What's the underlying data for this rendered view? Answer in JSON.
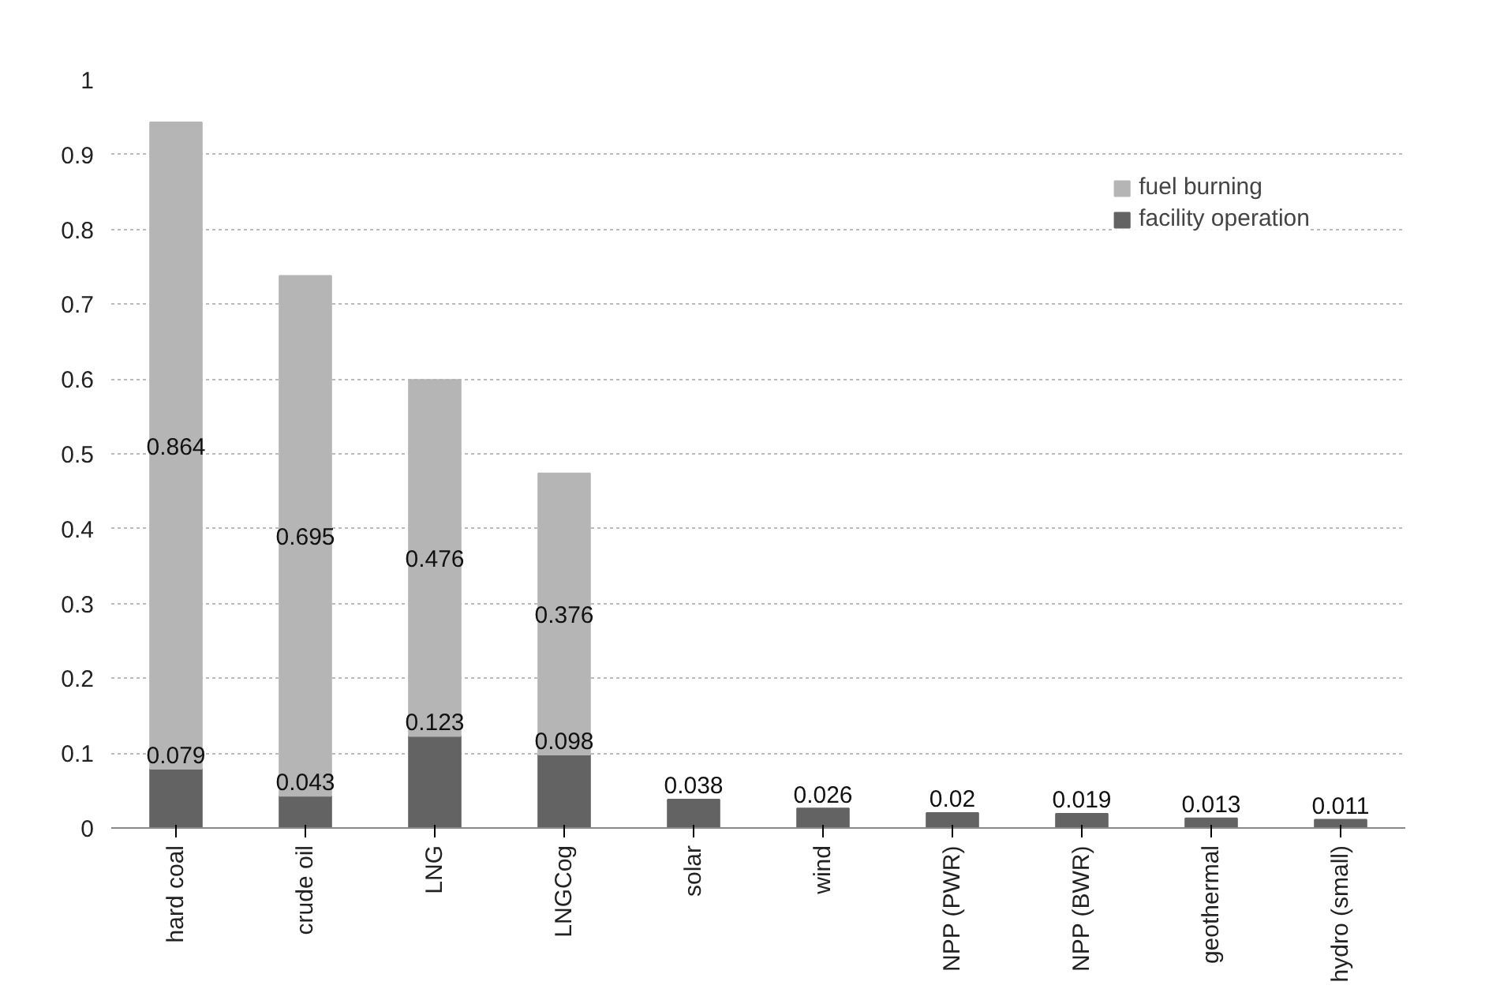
{
  "chart_data": {
    "type": "bar",
    "stacked": true,
    "categories": [
      "hard coal",
      "crude oil",
      "LNG",
      "LNGCog",
      "solar",
      "wind",
      "NPP (PWR)",
      "NPP (BWR)",
      "geothermal",
      "hydro (small)"
    ],
    "series": [
      {
        "name": "facility operation",
        "color": "#636363",
        "values": [
          0.079,
          0.043,
          0.123,
          0.098,
          0.038,
          0.026,
          0.02,
          0.019,
          0.013,
          0.011
        ]
      },
      {
        "name": "fuel burning",
        "color": "#b5b5b5",
        "values": [
          0.864,
          0.695,
          0.476,
          0.376,
          null,
          null,
          null,
          null,
          null,
          null
        ]
      }
    ],
    "ylim": [
      0,
      1
    ],
    "yticks": [
      0,
      0.1,
      0.2,
      0.3,
      0.4,
      0.5,
      0.6,
      0.7,
      0.8,
      0.9,
      1
    ],
    "grid": "y",
    "legend": "top right",
    "data_labels": true
  }
}
